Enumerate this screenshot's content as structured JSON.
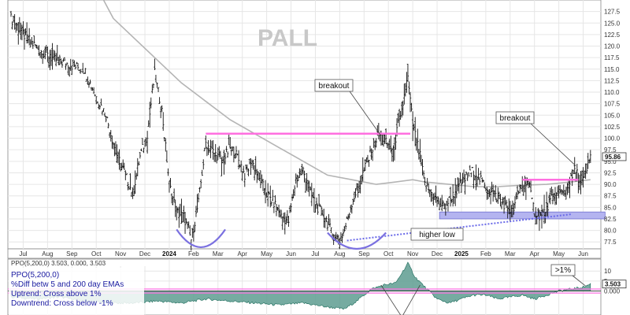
{
  "chart_data": [
    {
      "type": "line",
      "subtype": "ohlc",
      "title": "PALL",
      "ylim": [
        76,
        130
      ],
      "y_ticks": [
        77.5,
        80.0,
        82.5,
        85.0,
        87.5,
        90.0,
        92.5,
        95.0,
        97.5,
        100.0,
        102.5,
        105.0,
        107.5,
        110.0,
        112.5,
        115.0,
        117.5,
        120.0,
        122.5,
        125.0,
        127.5
      ],
      "x_labels": [
        "Jul",
        "Aug",
        "Sep",
        "Oct",
        "Nov",
        "Dec",
        "2024",
        "Feb",
        "Mar",
        "Apr",
        "May",
        "Jun",
        "Jul",
        "Aug",
        "Sep",
        "Oct",
        "Nov",
        "Dec",
        "2025",
        "Feb",
        "Mar",
        "Apr",
        "May",
        "Jun"
      ],
      "last_price_label": "95.86",
      "grid": true,
      "price_path": [
        [
          0,
          126
        ],
        [
          0.6,
          122
        ],
        [
          1.2,
          119
        ],
        [
          1.8,
          117
        ],
        [
          2.4,
          116
        ],
        [
          3.0,
          115
        ],
        [
          3.5,
          109
        ],
        [
          3.9,
          105
        ],
        [
          4.3,
          97
        ],
        [
          4.7,
          92
        ],
        [
          5.0,
          88
        ],
        [
          5.3,
          96
        ],
        [
          5.6,
          101
        ],
        [
          5.9,
          114
        ],
        [
          6.2,
          106
        ],
        [
          6.5,
          90
        ],
        [
          6.8,
          84
        ],
        [
          7.1,
          83
        ],
        [
          7.4,
          78
        ],
        [
          7.7,
          86
        ],
        [
          8.0,
          99
        ],
        [
          8.3,
          97
        ],
        [
          8.7,
          95
        ],
        [
          9.0,
          98
        ],
        [
          9.3,
          96
        ],
        [
          9.6,
          92
        ],
        [
          9.9,
          95
        ],
        [
          10.2,
          91
        ],
        [
          10.5,
          88
        ],
        [
          10.8,
          86
        ],
        [
          11.1,
          83
        ],
        [
          11.4,
          82
        ],
        [
          11.7,
          91
        ],
        [
          12.0,
          93
        ],
        [
          12.3,
          88
        ],
        [
          12.6,
          85
        ],
        [
          12.9,
          83
        ],
        [
          13.2,
          79
        ],
        [
          13.5,
          78
        ],
        [
          13.7,
          80
        ],
        [
          14.0,
          86
        ],
        [
          14.3,
          90
        ],
        [
          14.5,
          93
        ],
        [
          14.8,
          97
        ],
        [
          15.1,
          101
        ],
        [
          15.4,
          99
        ],
        [
          15.7,
          97
        ],
        [
          15.9,
          103
        ],
        [
          16.0,
          104
        ],
        [
          16.2,
          111
        ],
        [
          16.3,
          113
        ],
        [
          16.5,
          103
        ],
        [
          16.8,
          96
        ],
        [
          17.0,
          90
        ],
        [
          17.4,
          87
        ],
        [
          17.8,
          85
        ],
        [
          18.2,
          88
        ],
        [
          18.6,
          91
        ],
        [
          19.0,
          93
        ],
        [
          19.4,
          90
        ],
        [
          19.8,
          88
        ],
        [
          20.2,
          86
        ],
        [
          20.6,
          84
        ],
        [
          20.9,
          89
        ],
        [
          21.2,
          91
        ],
        [
          21.5,
          84
        ],
        [
          21.8,
          83
        ],
        [
          22.1,
          86
        ],
        [
          22.4,
          88
        ],
        [
          22.7,
          88
        ],
        [
          23.0,
          91
        ],
        [
          23.2,
          93
        ],
        [
          23.4,
          90
        ],
        [
          23.6,
          92
        ],
        [
          23.8,
          96
        ]
      ],
      "ma200_path": [
        [
          3.8,
          130
        ],
        [
          4.2,
          126
        ],
        [
          5.0,
          122
        ],
        [
          6.0,
          117
        ],
        [
          7.0,
          112
        ],
        [
          8.0,
          108
        ],
        [
          9.0,
          104
        ],
        [
          10.0,
          101
        ],
        [
          11.0,
          98
        ],
        [
          12.0,
          95
        ],
        [
          13.0,
          92
        ],
        [
          14.0,
          91
        ],
        [
          15.0,
          90
        ],
        [
          15.8,
          90.5
        ],
        [
          16.5,
          91
        ],
        [
          17.0,
          90.5
        ],
        [
          18.0,
          90
        ],
        [
          19.0,
          89.5
        ],
        [
          20.0,
          89.5
        ],
        [
          21.0,
          89.8
        ],
        [
          22.0,
          90
        ],
        [
          23.0,
          90.5
        ],
        [
          23.8,
          91
        ]
      ],
      "annotations": [
        {
          "text": "breakout",
          "points_to": [
            15.2,
            100.5
          ]
        },
        {
          "text": "breakout",
          "points_to": [
            23.2,
            94.0
          ]
        },
        {
          "text": "higher low"
        }
      ],
      "resistance_lines": [
        {
          "y": 101.0,
          "x0": 8.0,
          "x1": 16.4
        },
        {
          "y": 91.0,
          "x0": 21.0,
          "x1": 23.3
        }
      ],
      "support_zone": {
        "y0": 82.5,
        "y1": 84.0,
        "x0": 17.6,
        "x1": 24.4
      },
      "trendline": {
        "from": [
          13.8,
          77.8
        ],
        "to": [
          23.0,
          83.5
        ]
      },
      "colors": {
        "bars": "#111111",
        "ma200": "#b4b4b4",
        "resistance": "#ff6fe0",
        "support_zone": "#b4b4f0",
        "support_zone_border": "#7070d0",
        "trendline": "#6a6ae8",
        "rounding_arcs": "#7a70e0"
      }
    },
    {
      "type": "area",
      "title": "PPO(5,200,0) 3.503, 0.000, 3.503",
      "legend_lines": [
        "PPO(5,200,0)",
        "%Diff betw 5 and 200 day EMAs",
        "Uptrend: Cross above 1%",
        "Downtrend: Cross below -1%"
      ],
      "threshold_label": ">1%",
      "ylim": [
        -12,
        16
      ],
      "y_ticks": [
        10,
        5,
        0
      ],
      "y_tick_labels": [
        "10",
        "5",
        "0.000"
      ],
      "last_value_label": "3.503",
      "signal_lines": [
        1,
        -1
      ],
      "ppo_path": [
        [
          0,
          -3
        ],
        [
          1,
          -4
        ],
        [
          2,
          -3
        ],
        [
          3,
          -5
        ],
        [
          4,
          -6
        ],
        [
          5,
          -6
        ],
        [
          6,
          -5
        ],
        [
          7,
          -6
        ],
        [
          8,
          -4
        ],
        [
          9,
          -5
        ],
        [
          10,
          -6
        ],
        [
          11,
          -7
        ],
        [
          12,
          -6
        ],
        [
          13,
          -8
        ],
        [
          13.7,
          -9
        ],
        [
          14.2,
          -5
        ],
        [
          14.8,
          1
        ],
        [
          15.3,
          3
        ],
        [
          15.8,
          4
        ],
        [
          16.0,
          8
        ],
        [
          16.3,
          14
        ],
        [
          16.6,
          7
        ],
        [
          17.0,
          2
        ],
        [
          17.5,
          -4
        ],
        [
          18.0,
          -6
        ],
        [
          18.5,
          -4
        ],
        [
          19.0,
          -2
        ],
        [
          19.5,
          -2
        ],
        [
          20.0,
          -4
        ],
        [
          20.5,
          -3
        ],
        [
          21.0,
          -2
        ],
        [
          21.5,
          -4
        ],
        [
          22.0,
          -2
        ],
        [
          22.5,
          0
        ],
        [
          23.0,
          1
        ],
        [
          23.5,
          2
        ],
        [
          23.8,
          3.5
        ]
      ],
      "colors": {
        "fill": "#5e9c90",
        "line": "#1a6b5a",
        "signal": "#ff6fe0",
        "zero": "#333333",
        "text": "#1a1aa0"
      }
    }
  ]
}
